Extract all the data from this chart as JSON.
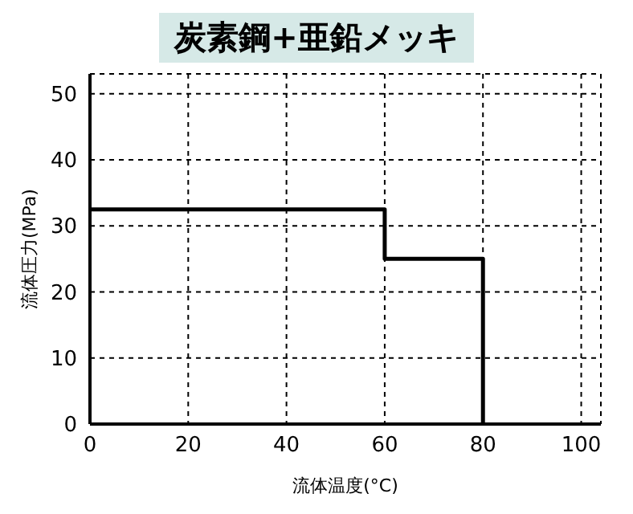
{
  "chart_data": {
    "type": "step",
    "title": "炭素鋼+亜鉛メッキ",
    "xlabel": "流体温度(°C)",
    "ylabel": "流体圧力(MPa)",
    "x": [
      0,
      60,
      80
    ],
    "series": [
      {
        "color": "#000000",
        "values": [
          32.5,
          25,
          0
        ]
      }
    ],
    "xlim": [
      0,
      104
    ],
    "xticks": [
      0,
      20,
      40,
      60,
      80,
      100
    ],
    "ylim": [
      0,
      53
    ],
    "yticks": [
      0,
      10,
      20,
      30,
      40,
      50
    ],
    "grid": true,
    "legend": false,
    "marker": "none",
    "line_style": "solid"
  }
}
